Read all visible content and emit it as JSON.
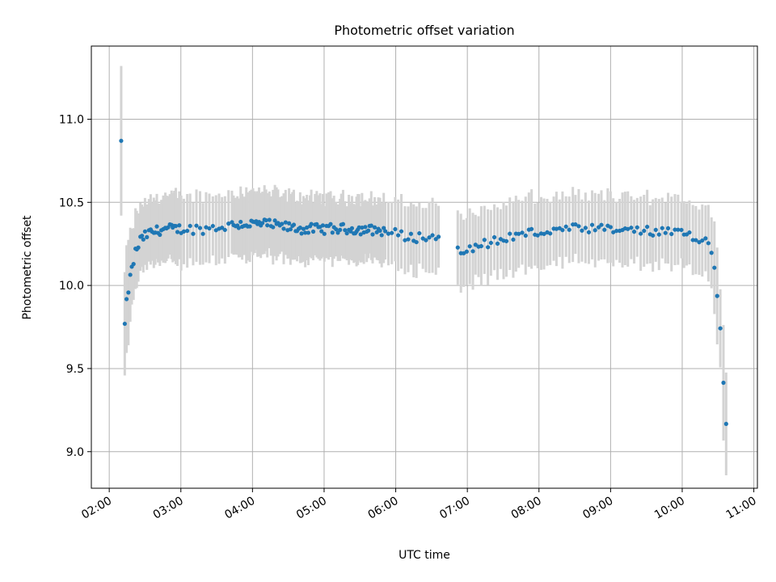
{
  "chart_data": {
    "type": "scatter",
    "title": "Photometric offset variation",
    "xlabel": "UTC time",
    "ylabel": "Photometric offset",
    "x_type": "time",
    "xlim": [
      "01:45",
      "11:03"
    ],
    "ylim": [
      8.78,
      11.44
    ],
    "x_ticks": [
      "02:00",
      "03:00",
      "04:00",
      "05:00",
      "06:00",
      "07:00",
      "08:00",
      "09:00",
      "10:00",
      "11:00"
    ],
    "y_ticks": [
      "9.0",
      "9.5",
      "10.0",
      "10.5",
      "11.0"
    ],
    "grid": true,
    "colors": {
      "points": "#1f77b4",
      "errorbars": "#d3d3d3",
      "grid": "#b0b0b0"
    },
    "anchors": [
      {
        "time": "02:10",
        "y": 10.87,
        "err": 0.45
      },
      {
        "time": "02:13",
        "y": 9.76,
        "err": 0.33
      },
      {
        "time": "02:15",
        "y": 9.93,
        "err": 0.3
      },
      {
        "time": "02:17",
        "y": 10.02,
        "err": 0.27
      },
      {
        "time": "02:19",
        "y": 10.1,
        "err": 0.25
      },
      {
        "time": "02:22",
        "y": 10.2,
        "err": 0.22
      },
      {
        "time": "02:26",
        "y": 10.27,
        "err": 0.21
      },
      {
        "time": "02:32",
        "y": 10.31,
        "err": 0.2
      },
      {
        "time": "02:45",
        "y": 10.34,
        "err": 0.2
      },
      {
        "time": "03:20",
        "y": 10.34,
        "err": 0.2
      },
      {
        "time": "03:50",
        "y": 10.37,
        "err": 0.2
      },
      {
        "time": "04:10",
        "y": 10.37,
        "err": 0.2
      },
      {
        "time": "04:40",
        "y": 10.34,
        "err": 0.19
      },
      {
        "time": "05:20",
        "y": 10.34,
        "err": 0.19
      },
      {
        "time": "05:50",
        "y": 10.33,
        "err": 0.19
      },
      {
        "time": "06:10",
        "y": 10.29,
        "err": 0.2
      },
      {
        "time": "06:35",
        "y": 10.29,
        "err": 0.2
      },
      {
        "time": "06:55",
        "y": 10.22,
        "err": 0.21
      },
      {
        "time": "07:20",
        "y": 10.26,
        "err": 0.21
      },
      {
        "time": "07:45",
        "y": 10.31,
        "err": 0.21
      },
      {
        "time": "08:30",
        "y": 10.34,
        "err": 0.2
      },
      {
        "time": "09:20",
        "y": 10.33,
        "err": 0.2
      },
      {
        "time": "10:00",
        "y": 10.31,
        "err": 0.2
      },
      {
        "time": "10:20",
        "y": 10.28,
        "err": 0.22
      },
      {
        "time": "10:25",
        "y": 10.2,
        "err": 0.23
      },
      {
        "time": "10:27",
        "y": 10.1,
        "err": 0.25
      },
      {
        "time": "10:33",
        "y": 9.66,
        "err": 0.27
      },
      {
        "time": "10:35",
        "y": 9.38,
        "err": 0.32
      },
      {
        "time": "10:37",
        "y": 9.16,
        "err": 0.36
      }
    ],
    "gaps": [
      [
        "06:37",
        "06:50"
      ]
    ]
  }
}
